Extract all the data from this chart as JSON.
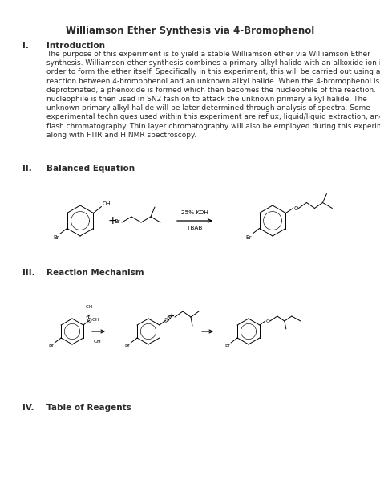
{
  "title": "Williamson Ether Synthesis via 4-Bromophenol",
  "section1_label": "I.",
  "section1_heading": "Introduction",
  "section1_body": "The purpose of this experiment is to yield a stable Williamson ether via Williamson Ether\nsynthesis. Williamson ether synthesis combines a primary alkyl halide with an alkoxide ion in\norder to form the ether itself. Specifically in this experiment, this will be carried out using a\nreaction between 4-bromophenol and an unknown alkyl halide. When the 4-bromophenol is\ndeprotonated, a phenoxide is formed which then becomes the nucleophile of the reaction. This\nnucleophile is then used in SN2 fashion to attack the unknown primary alkyl halide. The\nunknown primary alkyl halide will be later determined through analysis of spectra. Some\nexperimental techniques used within this experiment are reflux, liquid/liquid extraction, and\nflash chromatography. Thin layer chromatography will also be employed during this experiment\nalong with FTIR and H NMR spectroscopy.",
  "section2_label": "II.",
  "section2_heading": "Balanced Equation",
  "section3_label": "III.",
  "section3_heading": "Reaction Mechanism",
  "section4_label": "IV.",
  "section4_heading": "Table of Reagents",
  "bg_color": "#ffffff",
  "text_color": "#2a2a2a",
  "font_size_title": 8.5,
  "font_size_section_head": 7.5,
  "font_size_body": 6.5,
  "font_size_chem": 5.0
}
